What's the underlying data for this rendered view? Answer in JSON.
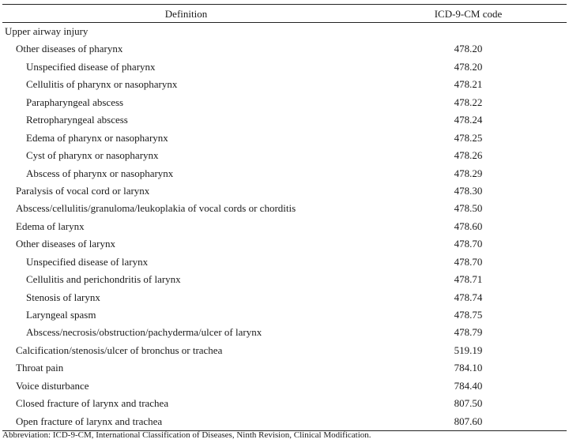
{
  "table": {
    "header": {
      "definition": "Definition",
      "code": "ICD-9-CM code"
    },
    "rows": [
      {
        "definition": "Upper airway injury",
        "code": "",
        "level": 0
      },
      {
        "definition": "Other diseases of pharynx",
        "code": "478.20",
        "level": 1
      },
      {
        "definition": "Unspecified disease of pharynx",
        "code": "478.20",
        "level": 2
      },
      {
        "definition": "Cellulitis of pharynx or nasopharynx",
        "code": "478.21",
        "level": 2
      },
      {
        "definition": "Parapharyngeal abscess",
        "code": "478.22",
        "level": 2
      },
      {
        "definition": "Retropharyngeal abscess",
        "code": "478.24",
        "level": 2
      },
      {
        "definition": "Edema of pharynx or nasopharynx",
        "code": "478.25",
        "level": 2
      },
      {
        "definition": "Cyst of pharynx or nasopharynx",
        "code": "478.26",
        "level": 2
      },
      {
        "definition": "Abscess of pharynx or nasopharynx",
        "code": "478.29",
        "level": 2
      },
      {
        "definition": "Paralysis of vocal cord or larynx",
        "code": "478.30",
        "level": 1
      },
      {
        "definition": "Abscess/cellulitis/granuloma/leukoplakia of vocal cords or chorditis",
        "code": "478.50",
        "level": 1
      },
      {
        "definition": "Edema of larynx",
        "code": "478.60",
        "level": 1
      },
      {
        "definition": "Other diseases of larynx",
        "code": "478.70",
        "level": 1
      },
      {
        "definition": "Unspecified disease of larynx",
        "code": "478.70",
        "level": 2
      },
      {
        "definition": "Cellulitis and perichondritis of larynx",
        "code": "478.71",
        "level": 2
      },
      {
        "definition": "Stenosis of larynx",
        "code": "478.74",
        "level": 2
      },
      {
        "definition": "Laryngeal spasm",
        "code": "478.75",
        "level": 2
      },
      {
        "definition": "Abscess/necrosis/obstruction/pachyderma/ulcer of larynx",
        "code": "478.79",
        "level": 2
      },
      {
        "definition": "Calcification/stenosis/ulcer of bronchus or trachea",
        "code": "519.19",
        "level": 1
      },
      {
        "definition": "Throat pain",
        "code": "784.10",
        "level": 1
      },
      {
        "definition": "Voice disturbance",
        "code": "784.40",
        "level": 1
      },
      {
        "definition": "Closed fracture of larynx and trachea",
        "code": "807.50",
        "level": 1
      },
      {
        "definition": "Open fracture of larynx and trachea",
        "code": "807.60",
        "level": 1
      }
    ]
  },
  "footnote": "Abbreviation: ICD-9-CM, International Classification of Diseases, Ninth Revision, Clinical Modification."
}
